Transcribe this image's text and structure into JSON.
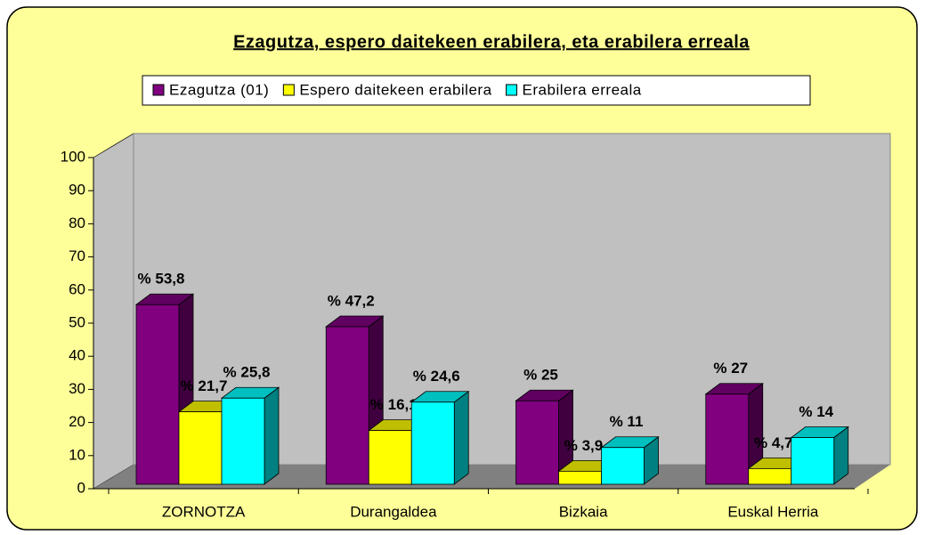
{
  "chart_data": {
    "type": "bar3d",
    "title": "Ezagutza, espero daitekeen erabilera, eta erabilera erreala",
    "categories": [
      "ZORNOTZA",
      "Durangaldea",
      "Bizkaia",
      "Euskal Herria"
    ],
    "series": [
      {
        "name": "Ezagutza (01)",
        "color": "#800080",
        "values": [
          53.8,
          47.2,
          25,
          27
        ],
        "value_labels": [
          "% 53,8",
          "% 47,2",
          "% 25",
          "% 27"
        ]
      },
      {
        "name": "Espero daitekeen erabilera",
        "color": "#ffff00",
        "values": [
          21.7,
          16.1,
          3.9,
          4.7
        ],
        "value_labels": [
          "% 21,7",
          "% 16,1",
          "% 3,9",
          "% 4,7"
        ]
      },
      {
        "name": "Erabilera erreala",
        "color": "#00ffff",
        "values": [
          25.8,
          24.6,
          11,
          14
        ],
        "value_labels": [
          "% 25,8",
          "% 24,6",
          "% 11",
          "% 14"
        ]
      }
    ],
    "ylim": [
      0,
      100
    ],
    "yticks": [
      0,
      10,
      20,
      30,
      40,
      50,
      60,
      70,
      80,
      90,
      100
    ]
  }
}
